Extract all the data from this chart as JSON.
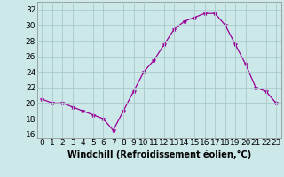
{
  "x": [
    0,
    1,
    2,
    3,
    4,
    5,
    6,
    7,
    8,
    9,
    10,
    11,
    12,
    13,
    14,
    15,
    16,
    17,
    18,
    19,
    20,
    21,
    22,
    23
  ],
  "y": [
    20.5,
    20.0,
    20.0,
    19.5,
    19.0,
    18.5,
    18.0,
    16.5,
    19.0,
    21.5,
    24.0,
    25.5,
    27.5,
    29.5,
    30.5,
    31.0,
    31.5,
    31.5,
    30.0,
    27.5,
    25.0,
    22.0,
    21.5,
    20.0
  ],
  "line_color": "#990099",
  "marker": "*",
  "marker_size": 3.5,
  "bg_color": "#cce8e8",
  "grid_color": "#aacaca",
  "xlabel": "Windchill (Refroidissement éolien,°C)",
  "xlabel_fontsize": 7,
  "tick_fontsize": 6.5,
  "ylim": [
    15.5,
    33
  ],
  "yticks": [
    16,
    18,
    20,
    22,
    24,
    26,
    28,
    30,
    32
  ],
  "xticks": [
    0,
    1,
    2,
    3,
    4,
    5,
    6,
    7,
    8,
    9,
    10,
    11,
    12,
    13,
    14,
    15,
    16,
    17,
    18,
    19,
    20,
    21,
    22,
    23
  ],
  "xlim": [
    -0.5,
    23.5
  ]
}
